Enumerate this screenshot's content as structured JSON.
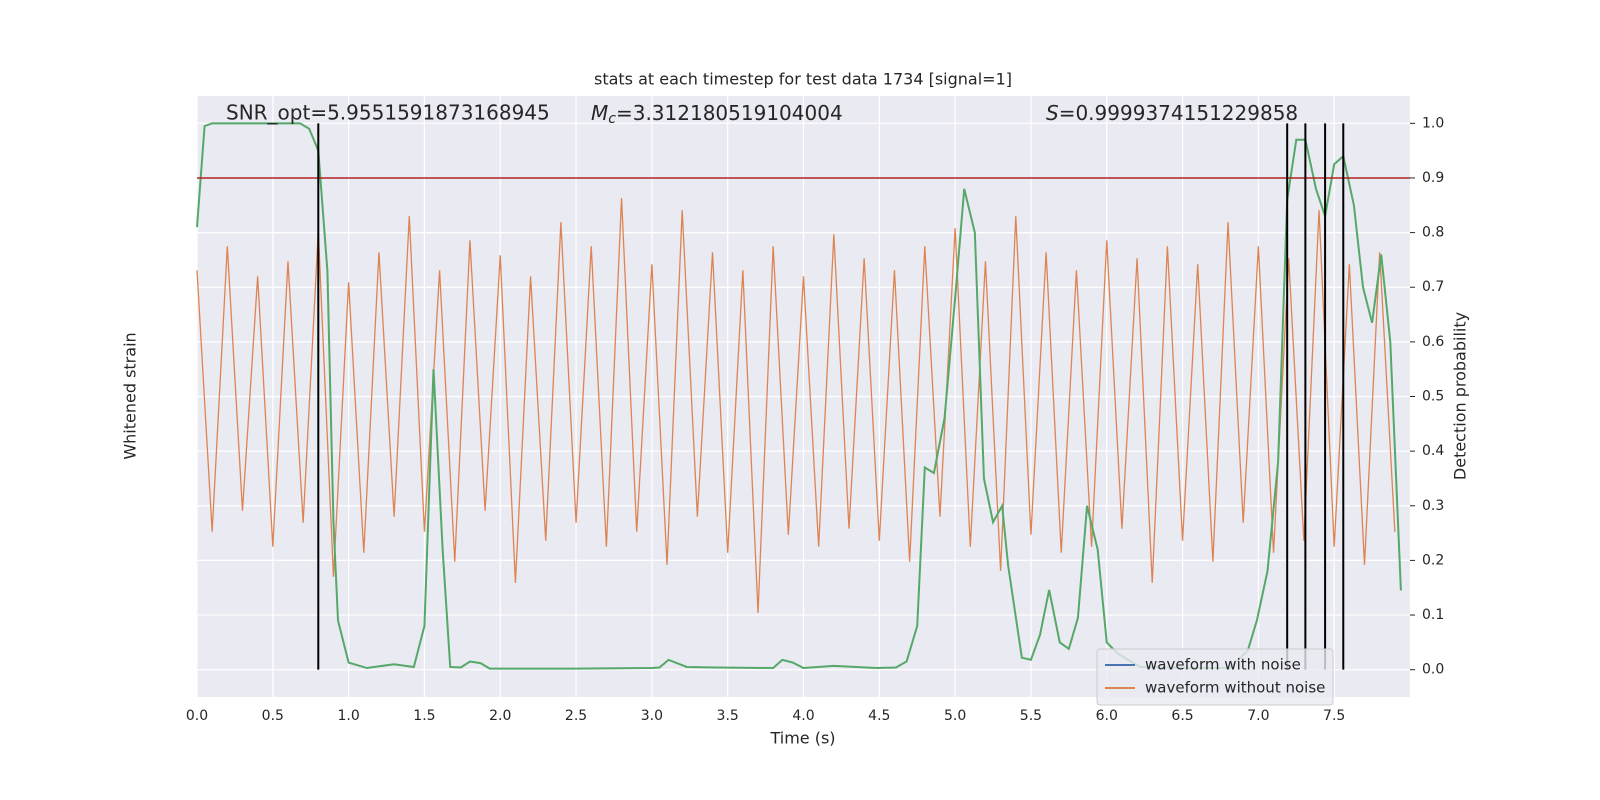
{
  "chart_data": {
    "type": "line",
    "title": "stats at each timestep for test data 1734 [signal=1]",
    "annotations": [
      {
        "text": "SNR_opt=5.9551591873168945"
      },
      {
        "symbol": "M",
        "subscript": "c",
        "text": "=3.312180519104004"
      },
      {
        "symbol": "S",
        "text": "=0.9999374151229858"
      }
    ],
    "xlabel": "Time (s)",
    "ylabel": "Whitened strain",
    "y2label": "Detection probability",
    "xlim": [
      0,
      8
    ],
    "xticks": [
      {
        "value": 0,
        "label": "0.0"
      },
      {
        "value": 0.5,
        "label": "0.5"
      },
      {
        "value": 1,
        "label": "1.0"
      },
      {
        "value": 1.5,
        "label": "1.5"
      },
      {
        "value": 2,
        "label": "2.0"
      },
      {
        "value": 2.5,
        "label": "2.5"
      },
      {
        "value": 3,
        "label": "3.0"
      },
      {
        "value": 3.5,
        "label": "3.5"
      },
      {
        "value": 4,
        "label": "4.0"
      },
      {
        "value": 4.5,
        "label": "4.5"
      },
      {
        "value": 5,
        "label": "5.0"
      },
      {
        "value": 5.5,
        "label": "5.5"
      },
      {
        "value": 6,
        "label": "6.0"
      },
      {
        "value": 6.5,
        "label": "6.5"
      },
      {
        "value": 7,
        "label": "7.0"
      },
      {
        "value": 7.5,
        "label": "7.5"
      }
    ],
    "ylim": [
      -1,
      1
    ],
    "y2lim": [
      -0.05,
      1.05
    ],
    "y2ticks": [
      {
        "value": 0,
        "label": "0.0"
      },
      {
        "value": 0.1,
        "label": "0.1"
      },
      {
        "value": 0.2,
        "label": "0.2"
      },
      {
        "value": 0.3,
        "label": "0.3"
      },
      {
        "value": 0.4,
        "label": "0.4"
      },
      {
        "value": 0.5,
        "label": "0.5"
      },
      {
        "value": 0.6,
        "label": "0.6"
      },
      {
        "value": 0.7,
        "label": "0.7"
      },
      {
        "value": 0.8,
        "label": "0.8"
      },
      {
        "value": 0.9,
        "label": "0.9"
      },
      {
        "value": 1,
        "label": "1.0"
      }
    ],
    "grid": true,
    "legend": "lower right",
    "series": [
      {
        "name": "waveform with noise",
        "color": "#4c72b0"
      },
      {
        "name": "waveform without noise",
        "color": "#dd8452",
        "x": [
          0,
          0.1,
          0.2,
          0.3,
          0.4,
          0.5,
          0.6,
          0.7,
          0.8,
          0.9,
          1,
          1.1,
          1.2,
          1.3,
          1.4,
          1.5,
          1.6,
          1.7,
          1.8,
          1.9,
          2,
          2.1,
          2.2,
          2.3,
          2.4,
          2.5,
          2.6,
          2.7,
          2.8,
          2.9,
          3,
          3.1,
          3.2,
          3.3,
          3.4,
          3.5,
          3.6,
          3.7,
          3.8,
          3.9,
          4,
          4.1,
          4.2,
          4.3,
          4.4,
          4.5,
          4.6,
          4.7,
          4.8,
          4.9,
          5,
          5.1,
          5.2,
          5.3,
          5.4,
          5.5,
          5.6,
          5.7,
          5.8,
          5.9,
          6,
          6.1,
          6.2,
          6.3,
          6.4,
          6.5,
          6.6,
          6.7,
          6.8,
          6.9,
          7,
          7.1,
          7.2,
          7.3,
          7.4,
          7.5,
          7.6,
          7.7,
          7.8,
          7.9
        ],
        "values": [
          0.42,
          -0.45,
          0.5,
          -0.38,
          0.4,
          -0.5,
          0.45,
          -0.42,
          0.55,
          -0.6,
          0.38,
          -0.52,
          0.48,
          -0.4,
          0.6,
          -0.45,
          0.42,
          -0.55,
          0.52,
          -0.38,
          0.47,
          -0.62,
          0.4,
          -0.48,
          0.58,
          -0.42,
          0.5,
          -0.5,
          0.66,
          -0.45,
          0.44,
          -0.56,
          0.62,
          -0.4,
          0.48,
          -0.52,
          0.42,
          -0.72,
          0.5,
          -0.46,
          0.4,
          -0.5,
          0.54,
          -0.44,
          0.46,
          -0.48,
          0.42,
          -0.55,
          0.5,
          -0.4,
          0.56,
          -0.5,
          0.45,
          -0.58,
          0.6,
          -0.46,
          0.48,
          -0.52,
          0.42,
          -0.5,
          0.52,
          -0.44,
          0.46,
          -0.62,
          0.5,
          -0.48,
          0.44,
          -0.55,
          0.58,
          -0.42,
          0.5,
          -0.52,
          0.46,
          -0.48,
          0.62,
          -0.5,
          0.44,
          -0.56,
          0.48,
          -0.45
        ]
      },
      {
        "color": "#55a868",
        "axis": "y2",
        "x": [
          0,
          0.05,
          0.1,
          0.68,
          0.74,
          0.8,
          0.86,
          0.9,
          0.93,
          1,
          1.12,
          1.3,
          1.43,
          1.5,
          1.56,
          1.62,
          1.67,
          1.74,
          1.8,
          1.87,
          1.93,
          2.5,
          3,
          3.05,
          3.11,
          3.23,
          3.43,
          3.8,
          3.86,
          3.93,
          4,
          4.2,
          4.48,
          4.61,
          4.68,
          4.75,
          4.8,
          4.86,
          4.93,
          5,
          5.06,
          5.13,
          5.19,
          5.25,
          5.31,
          5.35,
          5.44,
          5.5,
          5.56,
          5.62,
          5.69,
          5.75,
          5.81,
          5.87,
          5.94,
          6,
          6.07,
          6.22,
          6.6,
          6.81,
          6.93,
          6.99,
          7.06,
          7.13,
          7.19,
          7.25,
          7.31,
          7.38,
          7.44,
          7.5,
          7.56,
          7.63,
          7.69,
          7.75,
          7.81,
          7.87,
          7.94
        ],
        "values": [
          0.81,
          0.995,
          1,
          1,
          0.99,
          0.95,
          0.73,
          0.27,
          0.09,
          0.013,
          0.003,
          0.01,
          0.005,
          0.08,
          0.55,
          0.22,
          0.005,
          0.004,
          0.015,
          0.012,
          0.002,
          0.002,
          0.003,
          0.004,
          0.018,
          0.005,
          0.004,
          0.003,
          0.018,
          0.013,
          0.003,
          0.007,
          0.003,
          0.004,
          0.015,
          0.08,
          0.37,
          0.36,
          0.46,
          0.68,
          0.88,
          0.8,
          0.35,
          0.27,
          0.3,
          0.19,
          0.022,
          0.018,
          0.064,
          0.146,
          0.05,
          0.038,
          0.095,
          0.3,
          0.22,
          0.05,
          0.03,
          0.005,
          0.003,
          0.003,
          0.035,
          0.09,
          0.18,
          0.38,
          0.86,
          0.97,
          0.97,
          0.88,
          0.83,
          0.925,
          0.94,
          0.85,
          0.7,
          0.635,
          0.76,
          0.6,
          0.145
        ]
      }
    ],
    "hline": 0.9,
    "hline_color": "#b22222",
    "vlines": [
      0.8,
      7.19,
      7.31,
      7.44,
      7.56
    ],
    "vline_color": "#000000"
  }
}
